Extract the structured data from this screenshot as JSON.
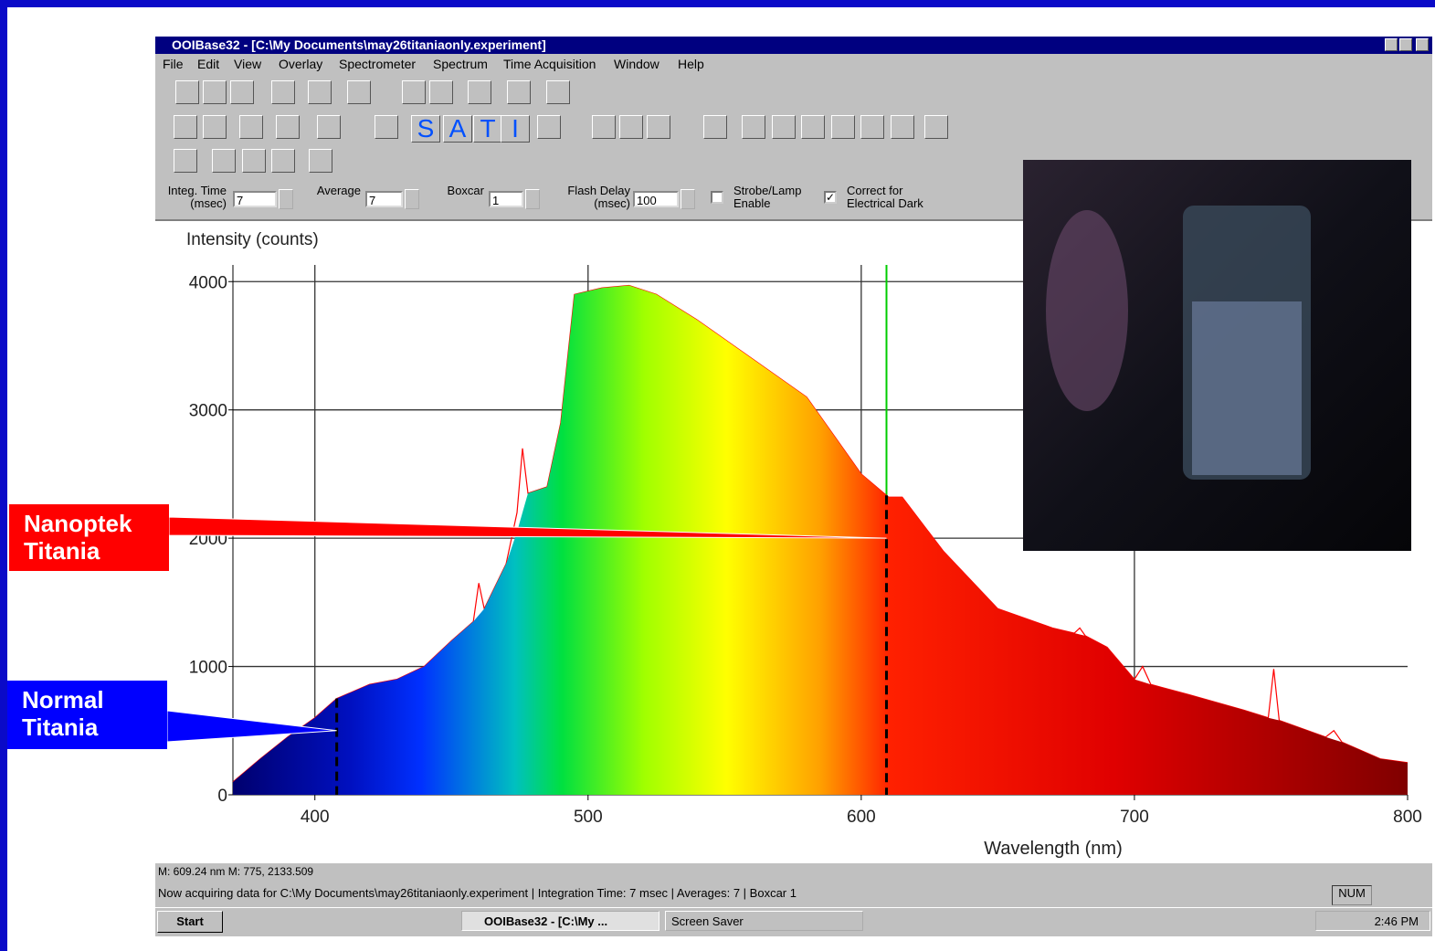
{
  "window": {
    "title": "OOIBase32 - [C:\\My Documents\\may26titaniaonly.experiment]"
  },
  "menu": [
    "File",
    "Edit",
    "View",
    "Overlay",
    "Spectrometer",
    "Spectrum",
    "Time Acquisition",
    "Window",
    "Help"
  ],
  "toolbar": {
    "labels": [
      "S",
      "A",
      "T",
      "I"
    ]
  },
  "fields": [
    {
      "label": "Integ. Time\n(msec)",
      "value": "7"
    },
    {
      "label": "Average",
      "value": "7"
    },
    {
      "label": "Boxcar",
      "value": "1"
    },
    {
      "label": "Flash Delay\n(msec)",
      "value": "100"
    }
  ],
  "checkboxes": [
    {
      "label": "Strobe/Lamp\nEnable",
      "checked": false
    },
    {
      "label": "Correct for\nElectrical Dark",
      "checked": true
    }
  ],
  "chart_data": {
    "type": "area",
    "ylabel": "Intensity (counts)",
    "xlabel": "Wavelength (nm)",
    "x": [
      370,
      380,
      390,
      400,
      408,
      420,
      430,
      440,
      450,
      458,
      460,
      462,
      470,
      474,
      476,
      478,
      485,
      490,
      495,
      505,
      515,
      525,
      540,
      560,
      580,
      590,
      600,
      610,
      615,
      630,
      650,
      670,
      678,
      680,
      682,
      690,
      700,
      703,
      706,
      720,
      740,
      749,
      751,
      753,
      770,
      773,
      776,
      790,
      800
    ],
    "series": [
      {
        "color": "gradient",
        "values": [
          100,
          280,
          450,
          600,
          750,
          860,
          900,
          1000,
          1200,
          1350,
          1400,
          1450,
          1800,
          2050,
          2200,
          2350,
          2400,
          2900,
          3900,
          3950,
          3970,
          3900,
          3700,
          3400,
          3100,
          2800,
          2500,
          2320,
          2320,
          1900,
          1450,
          1300,
          1260,
          1250,
          1240,
          1150,
          900,
          880,
          860,
          780,
          660,
          600,
          590,
          580,
          450,
          430,
          410,
          280,
          250
        ]
      },
      {
        "type": "line",
        "color": "#ff0000",
        "values": [
          100,
          280,
          450,
          600,
          750,
          860,
          900,
          1000,
          1200,
          1350,
          1650,
          1450,
          1800,
          2200,
          2700,
          2350,
          2400,
          2900,
          3900,
          3950,
          3970,
          3900,
          3700,
          3400,
          3100,
          2800,
          2500,
          2320,
          2320,
          1900,
          1450,
          1300,
          1260,
          1300,
          1240,
          1150,
          900,
          1000,
          860,
          780,
          660,
          600,
          980,
          580,
          450,
          500,
          410,
          280,
          250
        ]
      }
    ],
    "xlim": [
      370,
      800
    ],
    "ylim": [
      0,
      4130
    ],
    "xticks": [
      400,
      500,
      600,
      700,
      800
    ],
    "yticks": [
      0,
      1000,
      2000,
      3000,
      4000
    ],
    "grid": true,
    "cursor_color": "#00cc00",
    "annotations": [
      {
        "text": "Nanoptek\nTitania",
        "x": 609.24,
        "y": 2000,
        "color": "#ff0000"
      },
      {
        "text": "Normal\nTitania",
        "x": 408,
        "y": 500,
        "color": "#0000ff"
      }
    ]
  },
  "status": {
    "cursor": "M: 609.24 nm  M: 775, 2133.509",
    "message": "Now acquiring data for C:\\My Documents\\may26titaniaonly.experiment | Integration Time: 7 msec | Averages: 7 | Boxcar 1",
    "num": "NUM"
  },
  "taskbar": {
    "start": "Start",
    "tasks": [
      "OOIBase32 - [C:\\My ...",
      "Screen Saver"
    ],
    "clock": "2:46 PM"
  }
}
